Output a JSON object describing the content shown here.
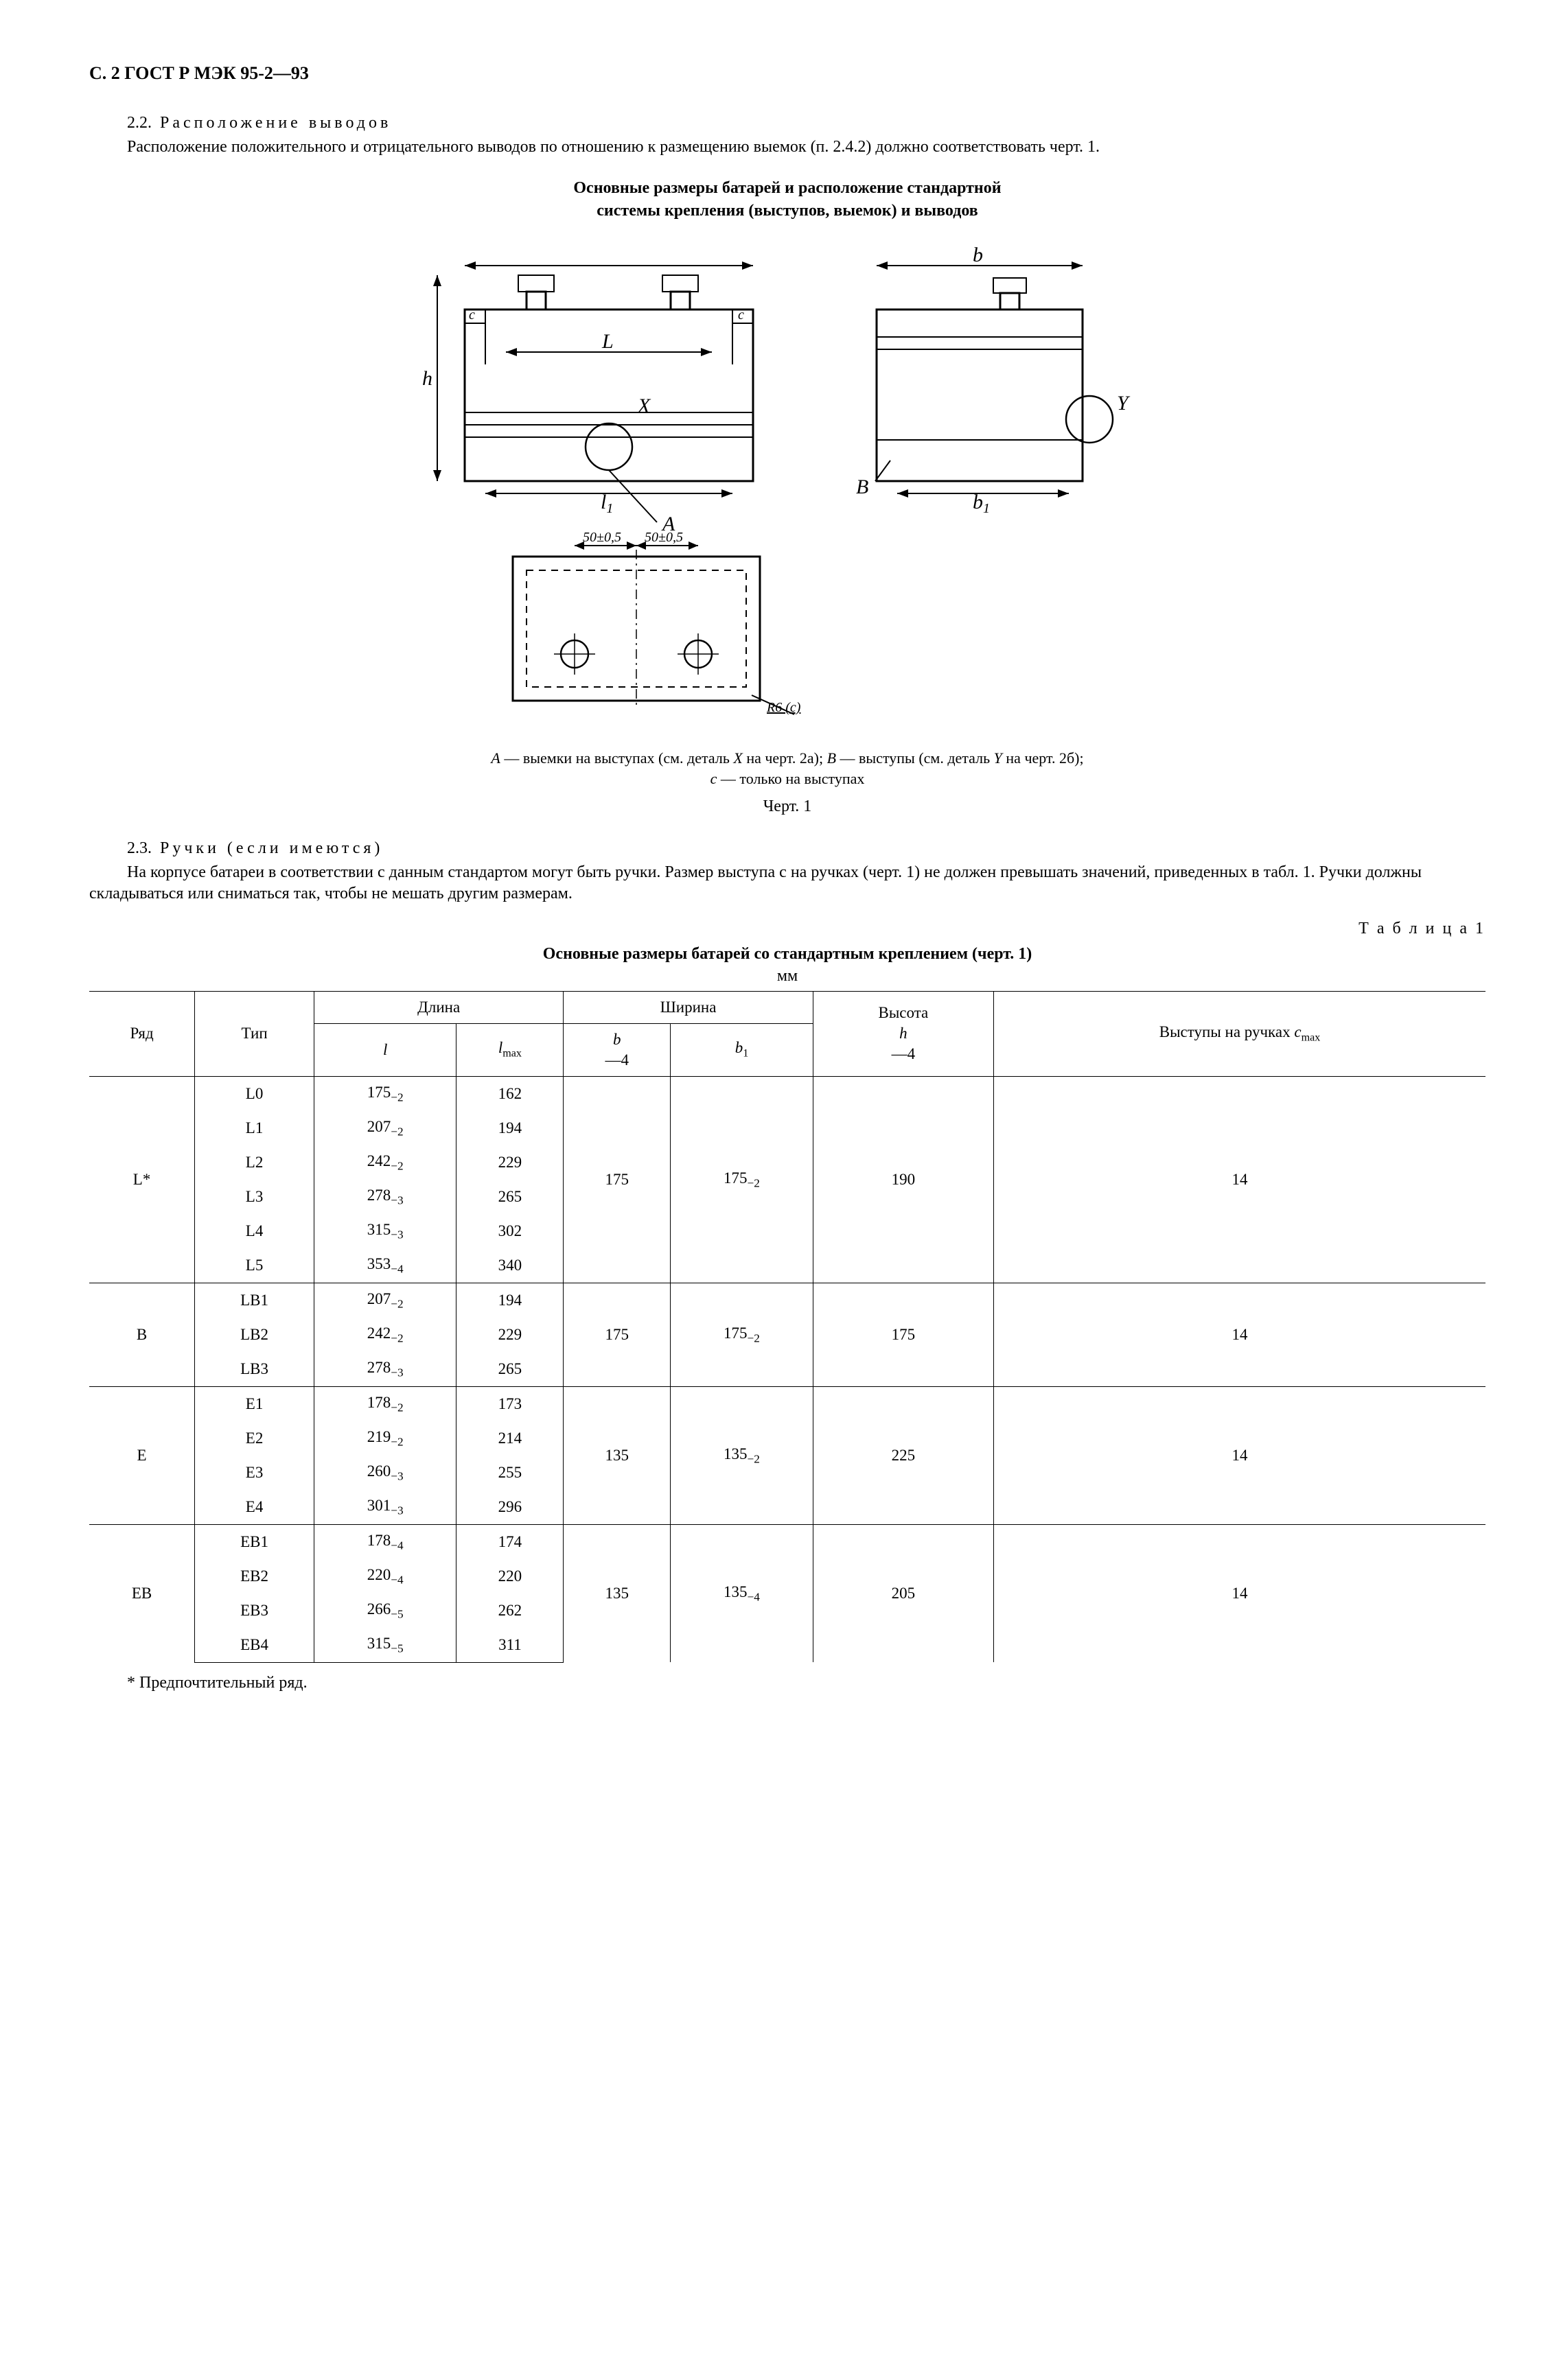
{
  "page": {
    "header": "С. 2 ГОСТ Р МЭК 95-2—93"
  },
  "s22": {
    "num": "2.2.",
    "title": "Расположение выводов",
    "para": "Расположение положительного и отрицательного выводов по отношению к размещению выемок (п. 2.4.2) должно соответствовать черт. 1."
  },
  "fig1": {
    "title_l1": "Основные размеры батарей и расположение стандартной",
    "title_l2": "системы крепления (выступов, выемок) и выводов",
    "dim_tol": "50±0,5",
    "dim_corner": "R6 (c)",
    "caption_html": "А — выемки на выступах (см. деталь X на черт. 2а); B — выступы (см. деталь Y на черт. 2б); c — только на выступах",
    "caption_A": "A",
    "caption_A_txt": " — выемки на выступах (см. деталь ",
    "caption_X": "X",
    "caption_X_after": " на черт. 2а); ",
    "caption_B": "B",
    "caption_B_txt": " — выступы (см. деталь ",
    "caption_Y": "Y",
    "caption_Y_after": " на черт. 2б); ",
    "caption_c": "c",
    "caption_c_txt": " — только на выступах",
    "label": "Черт. 1"
  },
  "s23": {
    "num": "2.3.",
    "title": "Ручки (если имеются)",
    "para": "На корпусе батареи в соответствии с данным стандартом могут быть ручки. Размер выступа c на ручках (черт. 1) не должен превышать значений, приведенных в табл. 1. Ручки должны складываться или сниматься так, чтобы не мешать другим размерам."
  },
  "table1": {
    "right_label": "Т а б л и ц а  1",
    "caption": "Основные размеры батарей со стандартным креплением (черт. 1)",
    "unit": "мм",
    "head": {
      "c1": "Ряд",
      "c2": "Тип",
      "len": "Длина",
      "wid": "Ширина",
      "h": "Высота",
      "h_sym": "h",
      "h_tol": "—4",
      "proj": "Выступы на ручках ",
      "proj_sym": "c",
      "proj_sub": "max",
      "l": "l",
      "lmax": "l",
      "lmax_sub": "max",
      "b": "b",
      "b_tol": "—4",
      "b1": "b",
      "b1_sub": "1"
    },
    "groups": [
      {
        "row": "L*",
        "types": [
          "L0",
          "L1",
          "L2",
          "L3",
          "L4",
          "L5"
        ],
        "l": [
          "175",
          "207",
          "242",
          "278",
          "315",
          "353"
        ],
        "ltol": [
          "−2",
          "−2",
          "−2",
          "−3",
          "−3",
          "−4"
        ],
        "lmax": [
          "162",
          "194",
          "229",
          "265",
          "302",
          "340"
        ],
        "b": "175",
        "b1": "175",
        "b1tol": "−2",
        "h": "190",
        "c": "14"
      },
      {
        "row": "B",
        "types": [
          "LB1",
          "LB2",
          "LB3"
        ],
        "l": [
          "207",
          "242",
          "278"
        ],
        "ltol": [
          "−2",
          "−2",
          "−3"
        ],
        "lmax": [
          "194",
          "229",
          "265"
        ],
        "b": "175",
        "b1": "175",
        "b1tol": "−2",
        "h": "175",
        "c": "14"
      },
      {
        "row": "E",
        "types": [
          "E1",
          "E2",
          "E3",
          "E4"
        ],
        "l": [
          "178",
          "219",
          "260",
          "301"
        ],
        "ltol": [
          "−2",
          "−2",
          "−3",
          "−3"
        ],
        "lmax": [
          "173",
          "214",
          "255",
          "296"
        ],
        "b": "135",
        "b1": "135",
        "b1tol": "−2",
        "h": "225",
        "c": "14"
      },
      {
        "row": "EB",
        "types": [
          "EB1",
          "EB2",
          "EB3",
          "EB4"
        ],
        "l": [
          "178",
          "220",
          "266",
          "315"
        ],
        "ltol": [
          "−4",
          "−4",
          "−5",
          "−5"
        ],
        "lmax": [
          "174",
          "220",
          "262",
          "311"
        ],
        "b": "135",
        "b1": "135",
        "b1tol": "−4",
        "h": "205",
        "c": "14"
      }
    ],
    "footnote": "* Предпочтительный ряд."
  },
  "style": {
    "stroke": "#000000",
    "stroke_bold": 3,
    "stroke_thin": 1.5,
    "dash": "8,6"
  }
}
